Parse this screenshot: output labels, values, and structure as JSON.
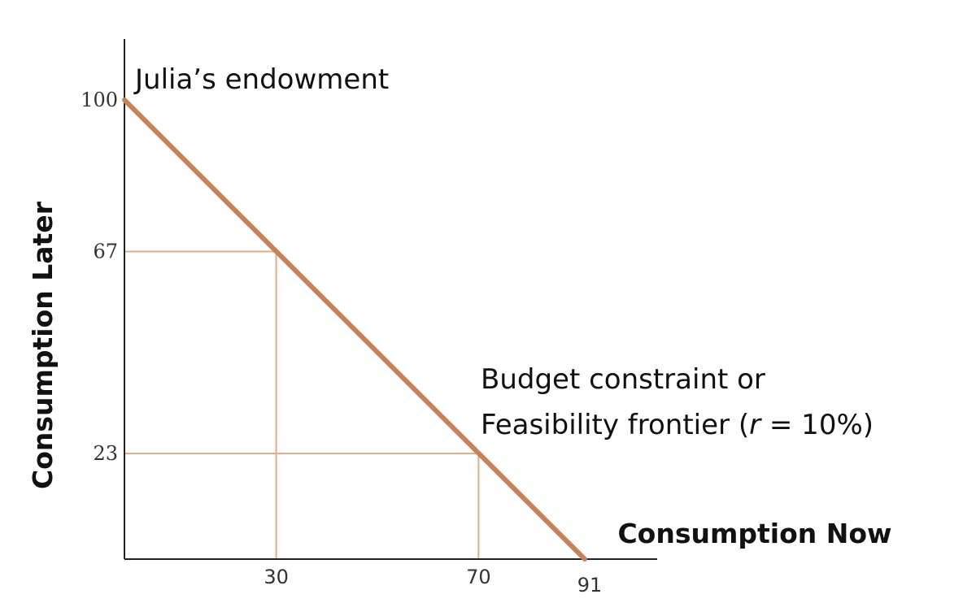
{
  "chart_data": {
    "type": "line",
    "xlabel": "Consumption Now",
    "ylabel": "Consumption Later",
    "xlim": [
      0,
      91
    ],
    "ylim": [
      0,
      100
    ],
    "x_ticks": [
      {
        "value": 30,
        "label": "30"
      },
      {
        "value": 70,
        "label": "70"
      },
      {
        "value": 91,
        "label": "91"
      }
    ],
    "y_ticks": [
      {
        "value": 100,
        "label": "100"
      },
      {
        "value": 67,
        "label": "67"
      },
      {
        "value": 23,
        "label": "23"
      }
    ],
    "series": [
      {
        "points": [
          {
            "x": 0,
            "y": 100
          },
          {
            "x": 91,
            "y": 0
          }
        ],
        "color": "#c8825a"
      }
    ],
    "guides": [
      {
        "x": 30,
        "y": 67
      },
      {
        "x": 70,
        "y": 23
      }
    ],
    "guide_color": "#dfae8c",
    "annotations": {
      "endowment": "Julia’s endowment",
      "budget_line1": "Budget constraint or",
      "budget_line2_prefix": "Feasibility frontier (",
      "budget_line2_var": "r",
      "budget_line2_suffix": " = 10%)"
    },
    "grid": false,
    "legend": "none"
  }
}
